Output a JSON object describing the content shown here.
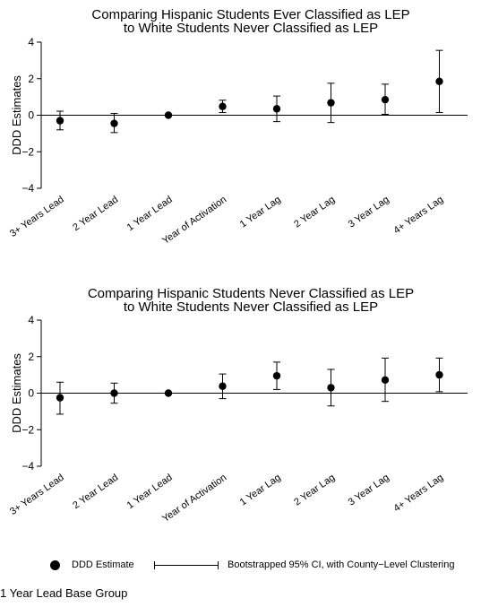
{
  "chart_data": [
    {
      "type": "scatter",
      "title": "Comparing Hispanic Students Ever Classified as LEP",
      "subtitle": "to White Students Never Classified as LEP",
      "ylabel": "DDD Estimates",
      "xlabel": "",
      "ylim": [
        -4,
        4
      ],
      "yticks": [
        4,
        2,
        0,
        -2,
        -4
      ],
      "ytick_labels": [
        "4",
        "2",
        "0",
        "−2",
        "−4"
      ],
      "categories": [
        "3+ Years Lead",
        "2 Year Lead",
        "1 Year Lead",
        "Year of Activation",
        "1 Year Lag",
        "2 Year Lag",
        "3 Year Lag",
        "4+ Years Lag"
      ],
      "values": [
        -0.3,
        -0.45,
        0.0,
        0.48,
        0.35,
        0.68,
        0.85,
        1.85
      ],
      "ci_low": [
        -0.8,
        -0.95,
        0.0,
        0.15,
        -0.35,
        -0.4,
        0.05,
        0.15
      ],
      "ci_high": [
        0.22,
        0.1,
        0.0,
        0.82,
        1.05,
        1.75,
        1.7,
        3.55
      ],
      "zero_line": true
    },
    {
      "type": "scatter",
      "title": "Comparing Hispanic Students Never Classified as LEP",
      "subtitle": "to White Students Never Classified as LEP",
      "ylabel": "DDD Estimates",
      "xlabel": "",
      "ylim": [
        -4,
        4
      ],
      "yticks": [
        4,
        2,
        0,
        -2,
        -4
      ],
      "ytick_labels": [
        "4",
        "2",
        "0",
        "−2",
        "−4"
      ],
      "categories": [
        "3+ Years Lead",
        "2 Year Lead",
        "1 Year Lead",
        "Year of Activation",
        "1 Year Lag",
        "2 Year Lag",
        "3 Year Lag",
        "4+ Years Lag"
      ],
      "values": [
        -0.25,
        0.0,
        0.0,
        0.38,
        0.95,
        0.3,
        0.72,
        1.0
      ],
      "ci_low": [
        -1.15,
        -0.55,
        0.0,
        -0.3,
        0.2,
        -0.7,
        -0.45,
        0.08
      ],
      "ci_high": [
        0.6,
        0.55,
        0.0,
        1.05,
        1.7,
        1.3,
        1.92,
        1.92
      ],
      "zero_line": true
    }
  ],
  "legend": {
    "estimate_label": "DDD Estimate",
    "ci_label": "Bootstrapped 95% CI, with County−Level Clustering"
  },
  "note": "1 Year Lead Base Group"
}
